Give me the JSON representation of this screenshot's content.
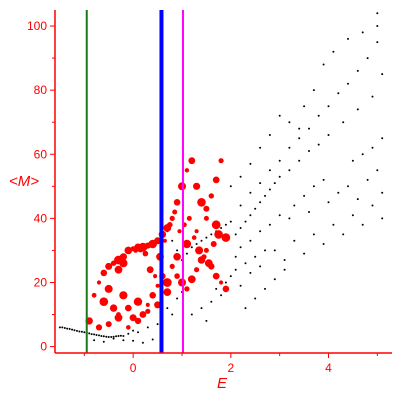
{
  "chart_data": {
    "type": "scatter",
    "xlabel": "E",
    "ylabel": "<M>",
    "xlim": [
      -1.6,
      5.3
    ],
    "ylim": [
      -2,
      105
    ],
    "x_ticks": [
      0,
      2,
      4
    ],
    "y_ticks": [
      0,
      20,
      40,
      60,
      80,
      100
    ],
    "grid": false,
    "axis_color": "#ff0000",
    "vertical_lines": [
      {
        "x": -0.95,
        "color": "#1a7a1a"
      },
      {
        "x": 0.58,
        "color": "#0000ff"
      },
      {
        "x": 1.02,
        "color": "#ff00ff"
      }
    ],
    "series": [
      {
        "color": "#000000",
        "marker": "small-dot",
        "points": [
          [
            -1.5,
            6
          ],
          [
            -1.45,
            6
          ],
          [
            -1.4,
            5.8
          ],
          [
            -1.35,
            5.6
          ],
          [
            -1.3,
            5.5
          ],
          [
            -1.25,
            5.3
          ],
          [
            -1.2,
            5.1
          ],
          [
            -1.15,
            4.9
          ],
          [
            -1.1,
            4.7
          ],
          [
            -1.05,
            4.6
          ],
          [
            -1.0,
            4.5
          ],
          [
            -0.95,
            4.3
          ],
          [
            -0.9,
            4.1
          ],
          [
            -0.85,
            3.9
          ],
          [
            -0.8,
            3.8
          ],
          [
            -0.75,
            3.6
          ],
          [
            -0.7,
            3.5
          ],
          [
            -0.65,
            3.3
          ],
          [
            -0.6,
            3.2
          ],
          [
            -0.55,
            3.1
          ],
          [
            -0.5,
            3.0
          ],
          [
            -0.45,
            3.0
          ],
          [
            -0.4,
            3.1
          ],
          [
            -0.35,
            3.2
          ],
          [
            -0.3,
            3.3
          ],
          [
            -0.25,
            3.4
          ],
          [
            -0.2,
            3.3
          ],
          [
            -0.1,
            4
          ],
          [
            0,
            5
          ],
          [
            0.1,
            4.5
          ],
          [
            -0.8,
            2
          ],
          [
            -0.6,
            1.5
          ],
          [
            -0.4,
            2.5
          ],
          [
            -0.2,
            2
          ],
          [
            0.0,
            1.8
          ],
          [
            0.2,
            1.2
          ],
          [
            0.4,
            2.2
          ],
          [
            0.3,
            6
          ],
          [
            0.5,
            7
          ],
          [
            0.6,
            9
          ],
          [
            0.7,
            12
          ],
          [
            0.8,
            10
          ],
          [
            0.9,
            15
          ],
          [
            1.0,
            17
          ],
          [
            0.6,
            38
          ],
          [
            0.7,
            36
          ],
          [
            0.8,
            33
          ],
          [
            0.9,
            30
          ],
          [
            1.0,
            27
          ],
          [
            1.1,
            29
          ],
          [
            1.2,
            31
          ],
          [
            1.3,
            32
          ],
          [
            1.4,
            33
          ],
          [
            1.5,
            34
          ],
          [
            1.6,
            35
          ],
          [
            1.7,
            36
          ],
          [
            1.8,
            37
          ],
          [
            1.9,
            38
          ],
          [
            2.0,
            39
          ],
          [
            1.2,
            10
          ],
          [
            1.4,
            12
          ],
          [
            1.5,
            8
          ],
          [
            1.6,
            14
          ],
          [
            1.7,
            18
          ],
          [
            1.8,
            16
          ],
          [
            1.9,
            20
          ],
          [
            2.0,
            22
          ],
          [
            2.1,
            24
          ],
          [
            2.2,
            19
          ],
          [
            2.3,
            26
          ],
          [
            2.4,
            23
          ],
          [
            2.5,
            28
          ],
          [
            2.6,
            25
          ],
          [
            2.7,
            30
          ],
          [
            2.1,
            35
          ],
          [
            2.2,
            37
          ],
          [
            2.3,
            39
          ],
          [
            2.4,
            41
          ],
          [
            2.5,
            43
          ],
          [
            2.6,
            45
          ],
          [
            2.7,
            47
          ],
          [
            2.8,
            49
          ],
          [
            2.9,
            51
          ],
          [
            3.0,
            53
          ],
          [
            3.2,
            55
          ],
          [
            3.4,
            58
          ],
          [
            3.6,
            61
          ],
          [
            3.8,
            63
          ],
          [
            4.0,
            66
          ],
          [
            2.2,
            44
          ],
          [
            2.4,
            48
          ],
          [
            2.6,
            51
          ],
          [
            2.8,
            55
          ],
          [
            3.0,
            58
          ],
          [
            3.2,
            62
          ],
          [
            3.4,
            65
          ],
          [
            3.6,
            68
          ],
          [
            3.8,
            72
          ],
          [
            4.0,
            75
          ],
          [
            4.2,
            79
          ],
          [
            4.4,
            82
          ],
          [
            4.6,
            86
          ],
          [
            4.8,
            90
          ],
          [
            5.0,
            95
          ],
          [
            2.9,
            30
          ],
          [
            3.1,
            27
          ],
          [
            3.3,
            33
          ],
          [
            3.5,
            29
          ],
          [
            3.7,
            35
          ],
          [
            3.9,
            32
          ],
          [
            4.1,
            38
          ],
          [
            4.3,
            35
          ],
          [
            4.5,
            41
          ],
          [
            4.7,
            38
          ],
          [
            4.9,
            44
          ],
          [
            5.1,
            40
          ],
          [
            3.2,
            40
          ],
          [
            3.6,
            42
          ],
          [
            4.0,
            45
          ],
          [
            4.2,
            48
          ],
          [
            4.4,
            50
          ],
          [
            4.6,
            46
          ],
          [
            4.8,
            52
          ],
          [
            5.0,
            55
          ],
          [
            5.1,
            48
          ],
          [
            4.5,
            58
          ],
          [
            4.7,
            60
          ],
          [
            4.9,
            62
          ],
          [
            5.1,
            65
          ],
          [
            4.3,
            70
          ],
          [
            4.6,
            74
          ],
          [
            4.9,
            78
          ],
          [
            5.1,
            85
          ],
          [
            5.0,
            100
          ],
          [
            2.3,
            12
          ],
          [
            2.5,
            15
          ],
          [
            2.7,
            18
          ],
          [
            2.9,
            21
          ],
          [
            3.1,
            24
          ],
          [
            2.1,
            28
          ],
          [
            2.2,
            31
          ],
          [
            2.4,
            33
          ],
          [
            2.6,
            36
          ],
          [
            2.8,
            38
          ],
          [
            3.0,
            41
          ],
          [
            3.3,
            44
          ],
          [
            3.5,
            47
          ],
          [
            3.7,
            50
          ],
          [
            3.9,
            52
          ],
          [
            3.9,
            88
          ],
          [
            4.1,
            92
          ],
          [
            4.4,
            96
          ],
          [
            4.7,
            98
          ],
          [
            5.0,
            104
          ],
          [
            3.5,
            75
          ],
          [
            3.7,
            80
          ],
          [
            3.4,
            68
          ],
          [
            3.2,
            70
          ],
          [
            3.0,
            72
          ],
          [
            2.8,
            66
          ],
          [
            2.6,
            62
          ],
          [
            2.4,
            57
          ],
          [
            2.2,
            53
          ],
          [
            2.0,
            50
          ]
        ]
      },
      {
        "color": "#ff0000",
        "marker": "large-dot",
        "points": [
          [
            -0.8,
            16
          ],
          [
            -0.7,
            20
          ],
          [
            -0.6,
            23
          ],
          [
            -0.5,
            25
          ],
          [
            -0.4,
            26
          ],
          [
            -0.3,
            27
          ],
          [
            -0.2,
            28
          ],
          [
            -0.1,
            30
          ],
          [
            0.0,
            30.5
          ],
          [
            0.1,
            31
          ],
          [
            0.2,
            31
          ],
          [
            0.3,
            31.5
          ],
          [
            0.4,
            32
          ],
          [
            0.5,
            33
          ],
          [
            0.6,
            35
          ],
          [
            0.7,
            37
          ],
          [
            0.8,
            40
          ],
          [
            0.9,
            45
          ],
          [
            1.0,
            50
          ],
          [
            1.1,
            55
          ],
          [
            1.2,
            58
          ],
          [
            1.3,
            50
          ],
          [
            1.4,
            45
          ],
          [
            1.5,
            43
          ],
          [
            1.6,
            47
          ],
          [
            1.7,
            52
          ],
          [
            1.8,
            58
          ],
          [
            -0.6,
            14
          ],
          [
            -0.5,
            18
          ],
          [
            -0.4,
            12
          ],
          [
            -0.3,
            10
          ],
          [
            -0.2,
            16
          ],
          [
            -0.1,
            12
          ],
          [
            0.0,
            9
          ],
          [
            0.1,
            14
          ],
          [
            0.2,
            10
          ],
          [
            0.3,
            13
          ],
          [
            0.4,
            16
          ],
          [
            0.5,
            19
          ],
          [
            0.6,
            22
          ],
          [
            0.7,
            20
          ],
          [
            0.8,
            25
          ],
          [
            0.9,
            22
          ],
          [
            1.0,
            20
          ],
          [
            1.1,
            18
          ],
          [
            1.2,
            21
          ],
          [
            1.3,
            24
          ],
          [
            1.4,
            27
          ],
          [
            1.5,
            30
          ],
          [
            1.6,
            25
          ],
          [
            1.7,
            22
          ],
          [
            1.8,
            20
          ],
          [
            1.9,
            18
          ],
          [
            -0.9,
            8
          ],
          [
            -0.7,
            6
          ],
          [
            -0.5,
            7
          ],
          [
            -0.3,
            9
          ],
          [
            -0.1,
            6
          ],
          [
            0.1,
            8
          ],
          [
            0.3,
            11
          ],
          [
            0.5,
            13
          ],
          [
            0.7,
            17
          ],
          [
            0.9,
            28
          ],
          [
            1.1,
            32
          ],
          [
            1.3,
            36
          ],
          [
            1.5,
            40
          ],
          [
            1.7,
            38
          ],
          [
            1.9,
            34
          ],
          [
            -0.3,
            24
          ],
          [
            -0.2,
            26
          ],
          [
            0.05,
            30
          ],
          [
            0.15,
            30.5
          ],
          [
            0.25,
            29
          ],
          [
            0.35,
            24
          ],
          [
            0.45,
            22
          ],
          [
            0.55,
            28
          ],
          [
            0.65,
            33
          ],
          [
            0.75,
            38
          ],
          [
            0.85,
            42
          ],
          [
            0.95,
            36
          ],
          [
            1.05,
            38
          ],
          [
            1.15,
            40
          ],
          [
            1.25,
            34
          ],
          [
            1.35,
            30
          ],
          [
            1.45,
            28
          ],
          [
            1.55,
            26
          ],
          [
            1.65,
            32
          ],
          [
            1.75,
            35
          ]
        ]
      }
    ]
  }
}
